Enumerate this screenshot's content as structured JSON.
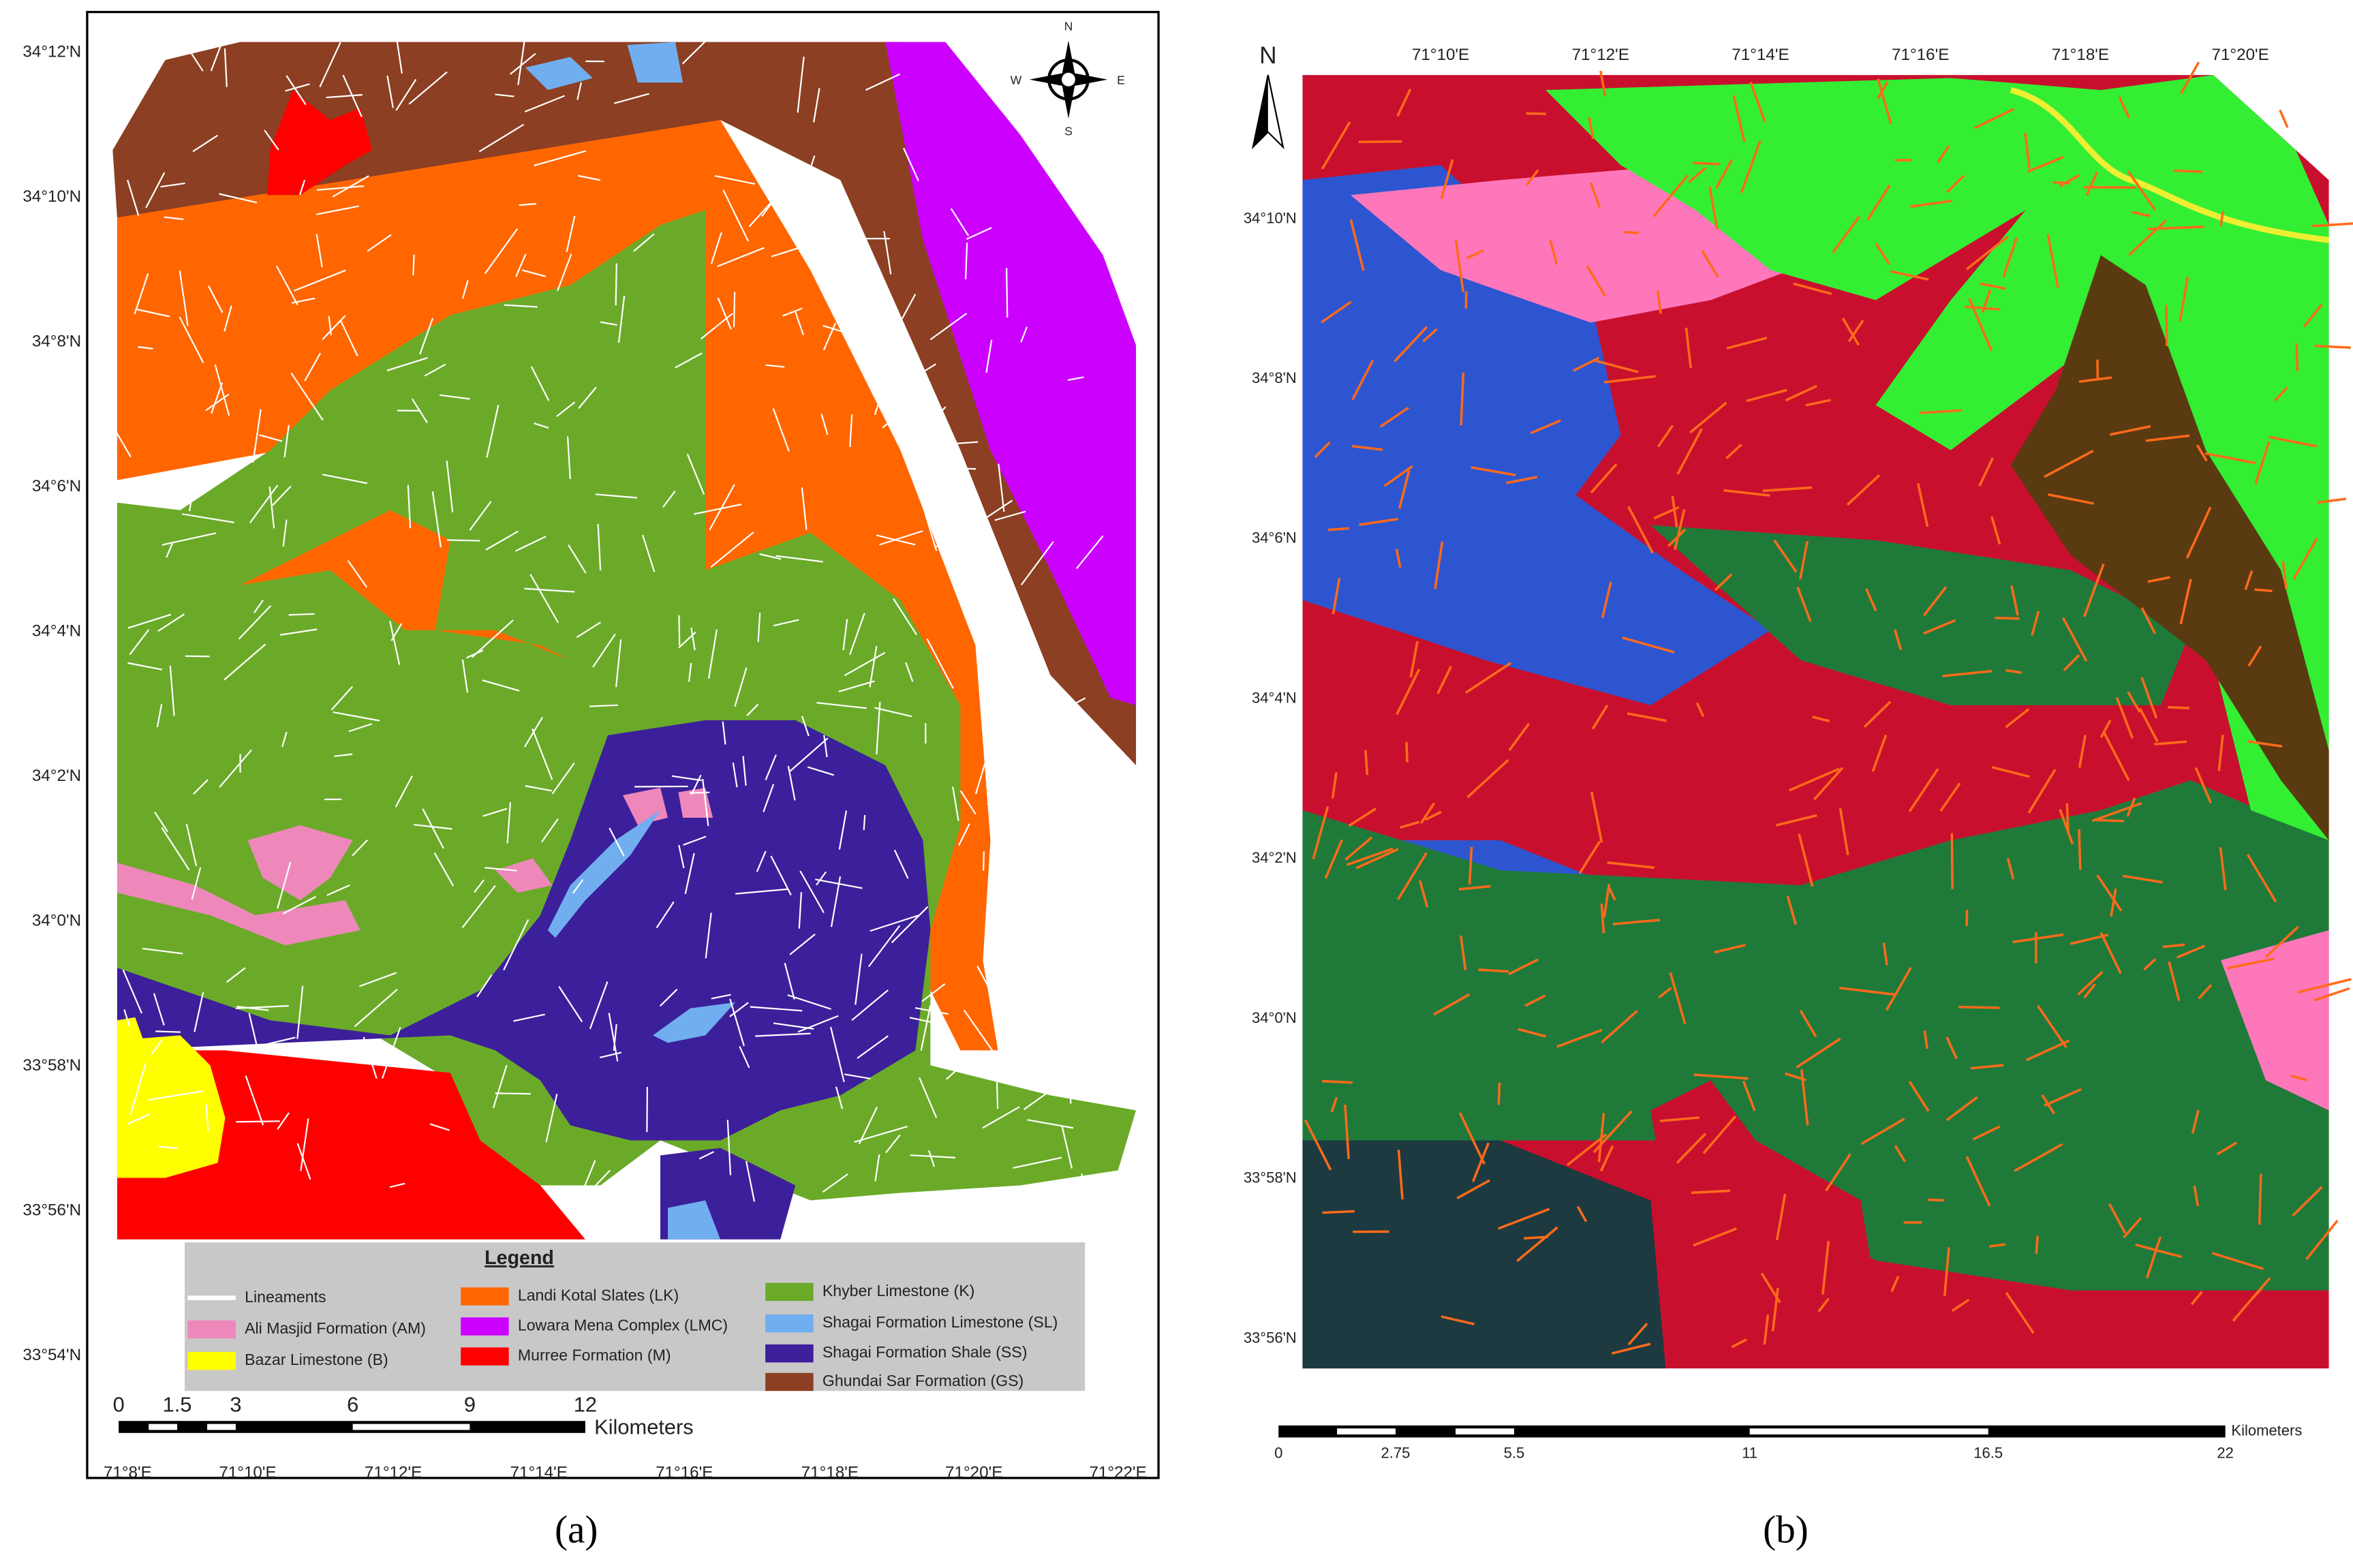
{
  "panel_a": {
    "latitude_labels": [
      "34°12'N",
      "34°10'N",
      "34°8'N",
      "34°6'N",
      "34°4'N",
      "34°2'N",
      "34°0'N",
      "33°58'N",
      "33°56'N",
      "33°54'N"
    ],
    "longitude_labels": [
      "71°8'E",
      "71°10'E",
      "71°12'E",
      "71°14'E",
      "71°16'E",
      "71°18'E",
      "71°20'E",
      "71°22'E"
    ],
    "compass": {
      "n": "N",
      "s": "S",
      "e": "E",
      "w": "W"
    },
    "legend": {
      "title": "Legend",
      "items": [
        "Lineaments",
        "Ali Masjid Formation (AM)",
        "Bazar Limestone (B)",
        "Landi Kotal Slates (LK)",
        "Lowara Mena Complex (LMC)",
        "Murree Formation (M)",
        "Khyber Limestone (K)",
        "Shagai Formation Limestone (SL)",
        "Shagai Formation Shale (SS)",
        "Ghundai Sar Formation (GS)"
      ]
    },
    "scale": {
      "ticks": [
        "0",
        "1.5",
        "3",
        "6",
        "9",
        "12"
      ],
      "unit": "Kilometers"
    },
    "caption": "(a)"
  },
  "panel_b": {
    "latitude_labels": [
      "34°10'N",
      "34°8'N",
      "34°6'N",
      "34°4'N",
      "34°2'N",
      "34°0'N",
      "33°58'N",
      "33°56'N"
    ],
    "longitude_labels": [
      "71°10'E",
      "71°12'E",
      "71°14'E",
      "71°16'E",
      "71°18'E",
      "71°20'E"
    ],
    "north": "N",
    "scale": {
      "ticks": [
        "0",
        "2.75",
        "5.5",
        "11",
        "16.5",
        "22"
      ],
      "unit": "Kilometers"
    },
    "caption": "(b)"
  }
}
